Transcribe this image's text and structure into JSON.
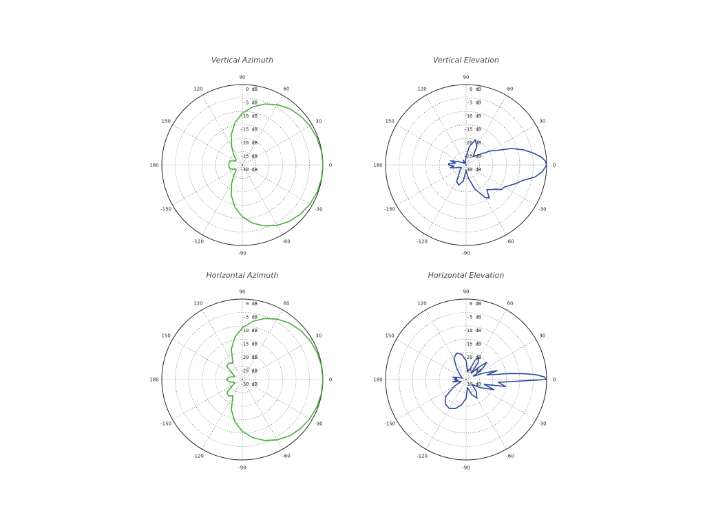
{
  "colors": {
    "green": "#44b035",
    "blue": "#2c48a0",
    "grid": "#555555",
    "ring": "#222222"
  },
  "chart_data": [
    {
      "type": "polar",
      "title": "Vertical Azimuth",
      "color": "green",
      "angle_labels": [
        "0",
        "30",
        "60",
        "90",
        "120",
        "150",
        "180",
        "-150",
        "-120",
        "-90",
        "-60",
        "-30"
      ],
      "db_labels": [
        "0 dB",
        "-5 dB",
        "-10 dB",
        "-15 dB",
        "-20 dB",
        "-25 dB",
        "-30 dB"
      ],
      "r_range_db": [
        -30,
        0
      ],
      "grid": true,
      "series": [
        {
          "angles": [
            0,
            10,
            20,
            30,
            40,
            50,
            60,
            70,
            80,
            90,
            100,
            110,
            120,
            130,
            140,
            150,
            160,
            170,
            180,
            190,
            200,
            210,
            220,
            230,
            240,
            250,
            260,
            270,
            280,
            290,
            300,
            310,
            320,
            330,
            340,
            350,
            360
          ],
          "db": [
            0,
            -0.1,
            -0.4,
            -0.9,
            -1.6,
            -2.6,
            -4,
            -5.8,
            -8,
            -10.7,
            -14,
            -18,
            -22,
            -25,
            -27,
            -27,
            -25.5,
            -25,
            -25,
            -25,
            -25.5,
            -27,
            -27,
            -25,
            -22,
            -18,
            -14,
            -10.7,
            -8,
            -5.8,
            -4,
            -2.6,
            -1.6,
            -0.9,
            -0.4,
            -0.1,
            0
          ]
        }
      ]
    },
    {
      "type": "polar",
      "title": "Vertical Elevation",
      "color": "blue",
      "angle_labels": [
        "0",
        "30",
        "60",
        "90",
        "120",
        "150",
        "180",
        "-150",
        "-120",
        "-90",
        "-60",
        "-30"
      ],
      "db_labels": [
        "0 dB",
        "-5 dB",
        "-10 dB",
        "-15 dB",
        "-20 dB",
        "-25 dB",
        "-30 dB"
      ],
      "r_range_db": [
        -30,
        0
      ],
      "grid": true,
      "series": [
        {
          "angles": [
            0,
            3,
            6,
            10,
            15,
            20,
            25,
            30,
            40,
            50,
            60,
            70,
            80,
            90,
            100,
            110,
            120,
            135,
            150,
            160,
            165,
            170,
            175,
            180,
            185,
            190,
            195,
            200,
            210,
            220,
            230,
            240,
            250,
            260,
            270,
            280,
            290,
            300,
            305,
            310,
            315,
            320,
            325,
            330,
            335,
            340,
            345,
            350,
            355,
            360
          ],
          "db": [
            0,
            -0.5,
            -1.8,
            -4.5,
            -8,
            -12,
            -17,
            -19.5,
            -24,
            -26,
            -22,
            -20,
            -23,
            -27,
            -28.5,
            -29.5,
            -28,
            -29,
            -28,
            -26,
            -24,
            -26,
            -23.5,
            -23.5,
            -25.5,
            -24,
            -26,
            -27.5,
            -28,
            -27,
            -26,
            -23,
            -22,
            -24,
            -28,
            -25,
            -20.5,
            -16,
            -15,
            -18,
            -17,
            -16,
            -14,
            -13.5,
            -12,
            -10,
            -8,
            -4,
            -1.5,
            0
          ]
        }
      ]
    },
    {
      "type": "polar",
      "title": "Horizontal Azimuth",
      "color": "green",
      "angle_labels": [
        "0",
        "30",
        "60",
        "90",
        "120",
        "150",
        "180",
        "-150",
        "-120",
        "-90",
        "-60",
        "-30"
      ],
      "db_labels": [
        "0 dB",
        "-5 dB",
        "-10 dB",
        "-15 dB",
        "-20 dB",
        "-25 dB",
        "-30 dB"
      ],
      "r_range_db": [
        -30,
        0
      ],
      "grid": true,
      "series": [
        {
          "angles": [
            0,
            10,
            20,
            30,
            40,
            50,
            60,
            70,
            80,
            90,
            100,
            110,
            120,
            130,
            140,
            150,
            160,
            170,
            180,
            190,
            200,
            210,
            220,
            230,
            240,
            250,
            260,
            270,
            280,
            290,
            300,
            310,
            320,
            330,
            340,
            350,
            360
          ],
          "db": [
            0,
            -0.1,
            -0.4,
            -0.9,
            -1.6,
            -2.6,
            -4,
            -5.8,
            -8,
            -10.7,
            -14,
            -18,
            -23,
            -22,
            -22.5,
            -26,
            -27,
            -25,
            -24,
            -25,
            -27,
            -26,
            -22.5,
            -22,
            -23,
            -18,
            -14,
            -10.7,
            -8,
            -5.8,
            -4,
            -2.6,
            -1.6,
            -0.9,
            -0.4,
            -0.1,
            0
          ]
        }
      ]
    },
    {
      "type": "polar",
      "title": "Horizontal Elevation",
      "color": "blue",
      "angle_labels": [
        "0",
        "30",
        "60",
        "90",
        "120",
        "150",
        "180",
        "-150",
        "-120",
        "-90",
        "-60",
        "-30"
      ],
      "db_labels": [
        "0 dB",
        "-5 dB",
        "-10 dB",
        "-15 dB",
        "-20 dB",
        "-25 dB",
        "-30 dB"
      ],
      "r_range_db": [
        -30,
        0
      ],
      "grid": true,
      "series": [
        {
          "angles": [
            0,
            2,
            4,
            6,
            8,
            12,
            16,
            20,
            25,
            30,
            35,
            40,
            45,
            50,
            55,
            60,
            65,
            70,
            80,
            90,
            100,
            110,
            120,
            130,
            140,
            150,
            160,
            165,
            170,
            175,
            180,
            185,
            190,
            195,
            200,
            210,
            220,
            230,
            240,
            250,
            260,
            270,
            280,
            290,
            300,
            310,
            320,
            330,
            340,
            345,
            350,
            355,
            360
          ],
          "db": [
            0,
            -1,
            -4,
            -9,
            -14,
            -22,
            -18,
            -23,
            -27,
            -25,
            -22,
            -20,
            -24,
            -27,
            -22,
            -20.5,
            -22,
            -26,
            -27,
            -23,
            -20.5,
            -19.5,
            -21,
            -24.5,
            -27,
            -28,
            -28.5,
            -27,
            -25,
            -26.5,
            -25.5,
            -27,
            -25,
            -27,
            -28,
            -25,
            -20,
            -18,
            -17.5,
            -18.5,
            -20.5,
            -23,
            -27,
            -24,
            -22,
            -24,
            -27,
            -24,
            -19,
            -23,
            -15,
            -18,
            0
          ]
        }
      ]
    }
  ]
}
